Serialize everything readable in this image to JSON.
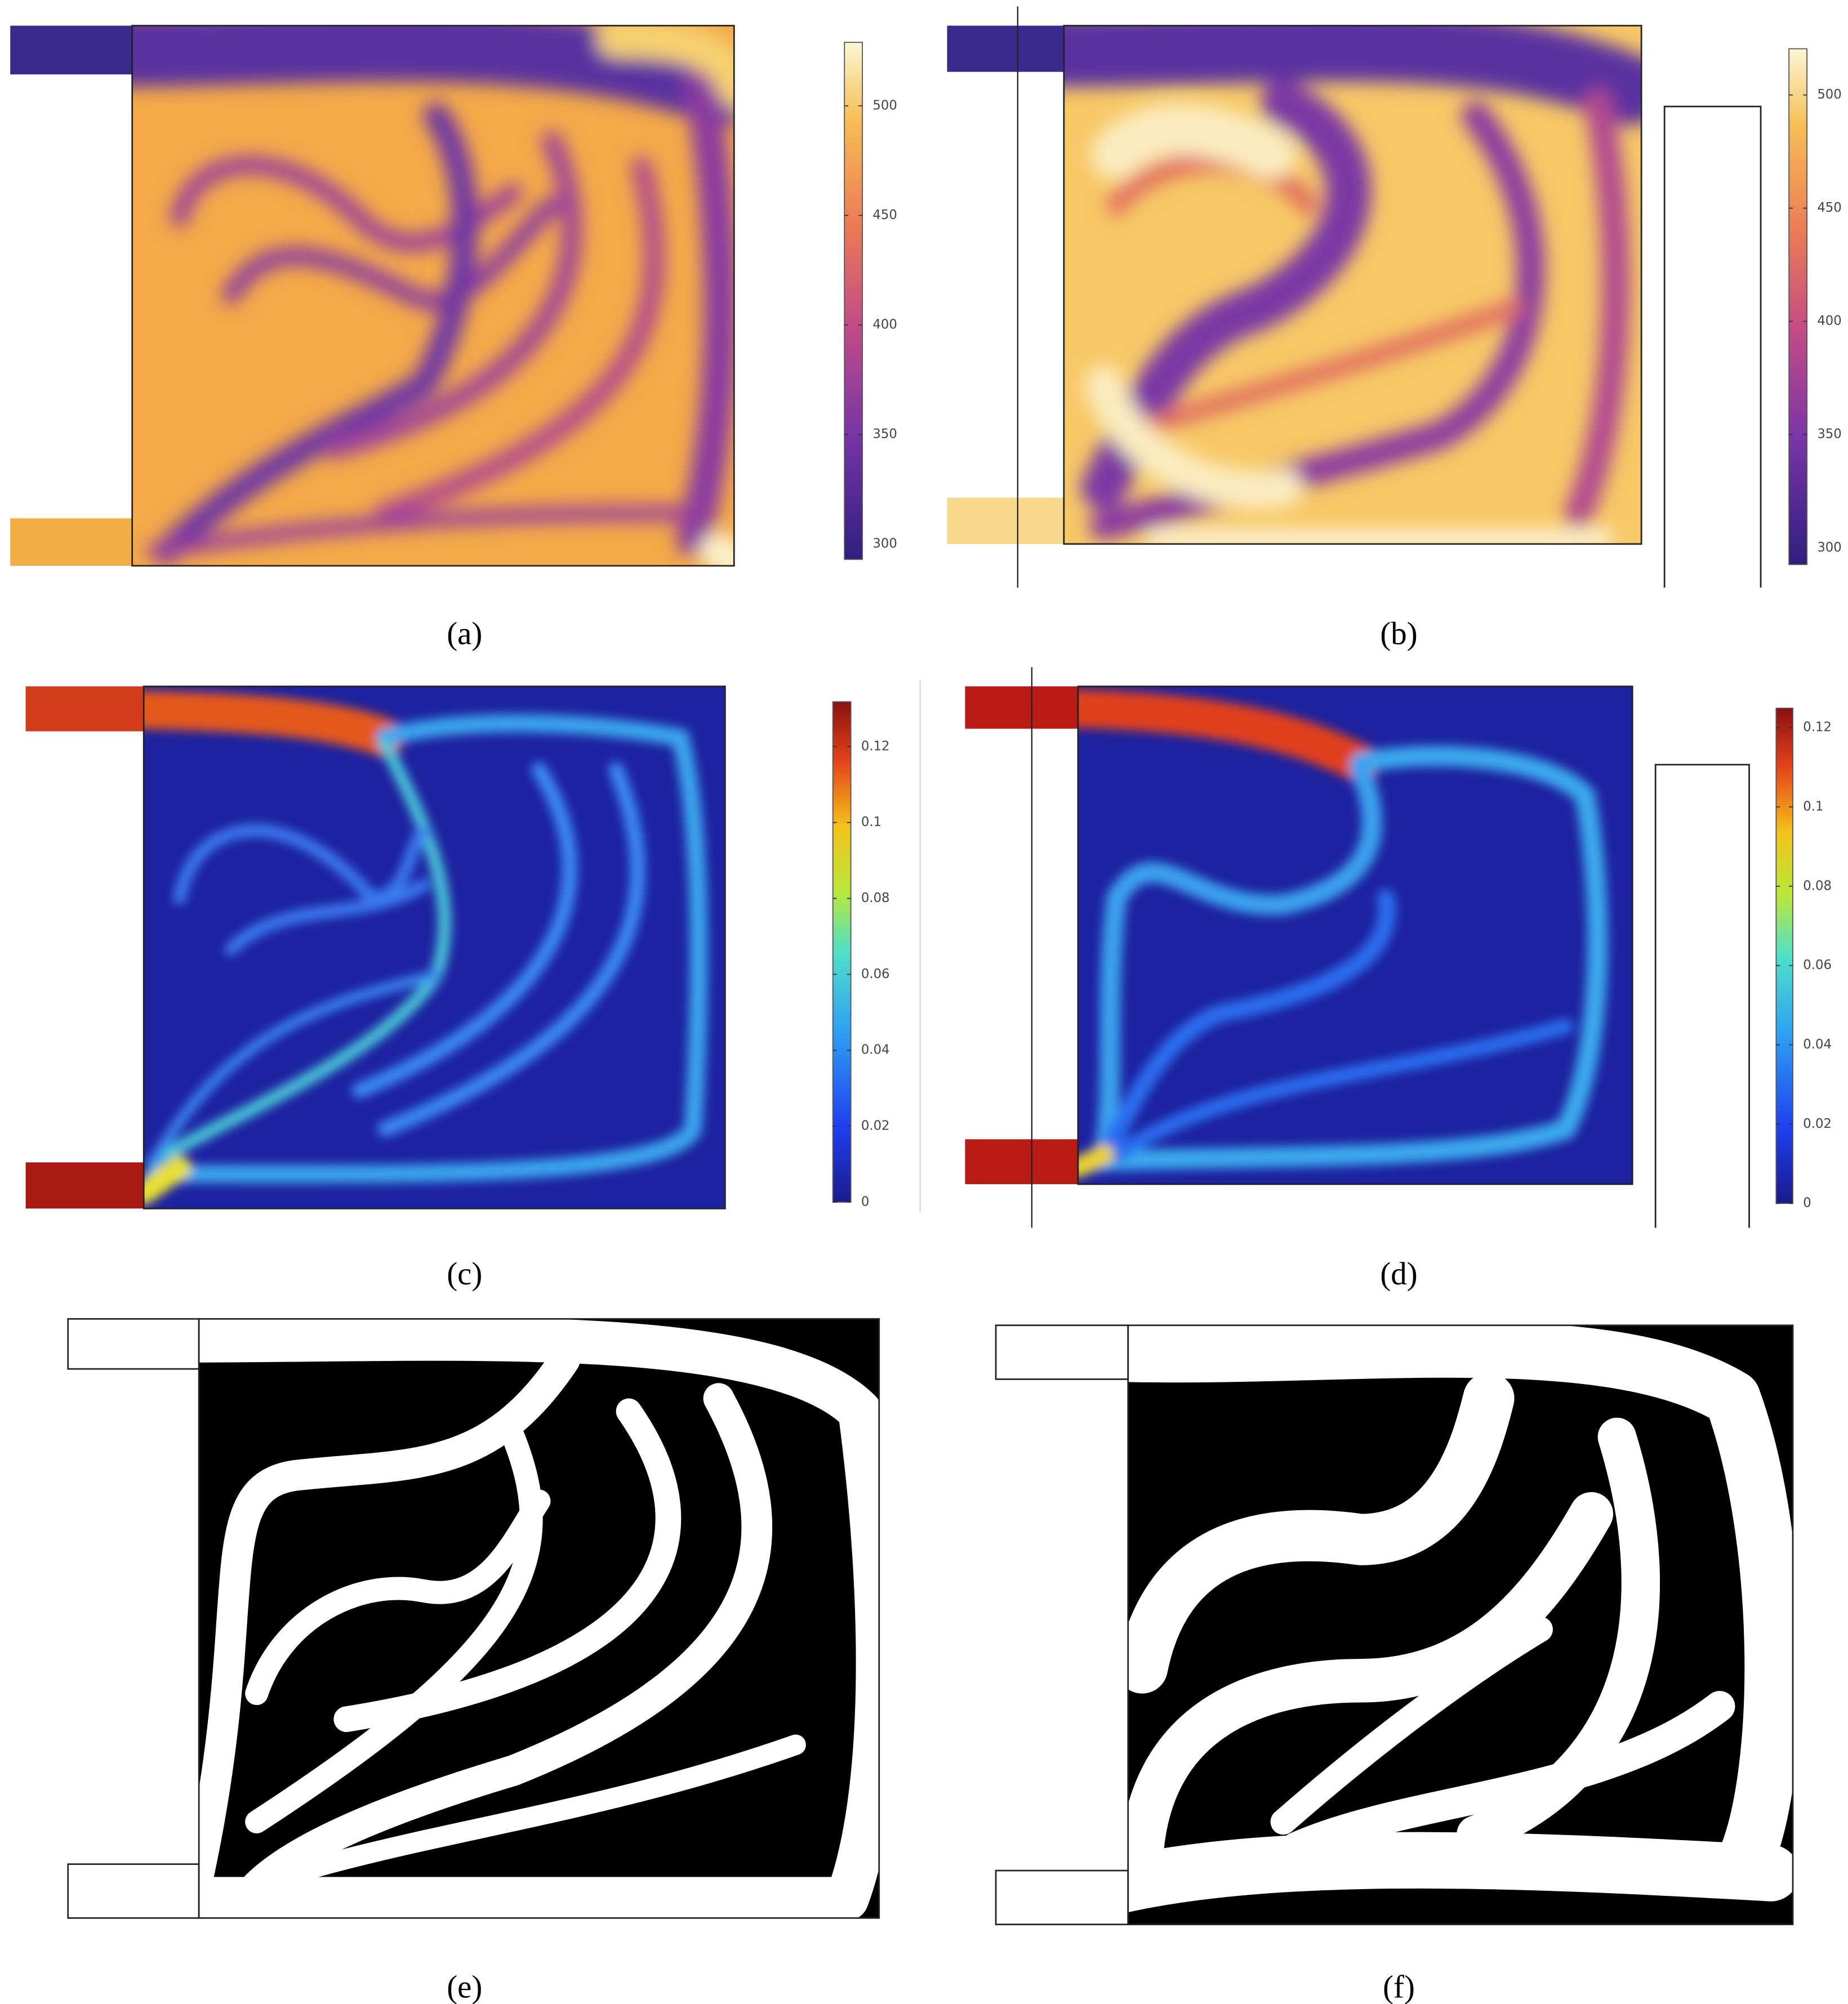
{
  "panels": [
    {
      "caption": "(a)",
      "colorbar": {
        "lim": [
          293,
          529
        ],
        "ticks": [
          300,
          350,
          400,
          450,
          500
        ]
      }
    },
    {
      "caption": "(b)",
      "colorbar": {
        "lim": [
          292.6,
          520.4
        ],
        "ticks": [
          300,
          350,
          400,
          450,
          500
        ]
      }
    },
    {
      "caption": "(c)",
      "colorbar": {
        "lim": [
          0,
          0.1318
        ],
        "ticks": [
          0,
          0.02,
          0.04,
          0.06,
          0.08,
          0.1,
          0.12
        ]
      }
    },
    {
      "caption": "(d)",
      "colorbar": {
        "lim": [
          0,
          0.1249
        ],
        "ticks": [
          0,
          0.02,
          0.04,
          0.06,
          0.08,
          0.1,
          0.12
        ]
      }
    },
    {
      "caption": "(e)"
    },
    {
      "caption": "(f)"
    }
  ]
}
